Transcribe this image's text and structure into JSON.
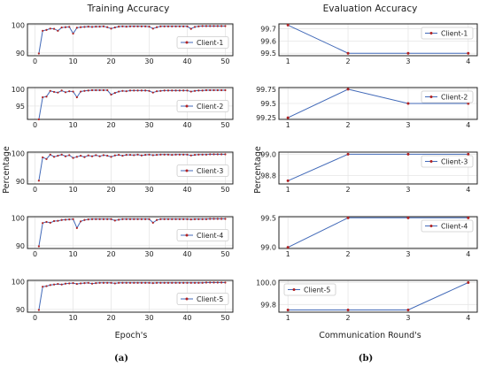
{
  "figure": {
    "left_title": "Training Accuracy",
    "right_title": "Evaluation Accuracy",
    "left_xlabel": "Epoch's",
    "right_xlabel": "Communication Round's",
    "left_ylabel": "Percentage",
    "right_ylabel": "Percentage",
    "left_caption": "(a)",
    "right_caption": "(b)"
  },
  "colors": {
    "line": "#4169b8",
    "marker": "#b22222",
    "grid": "#e6e6e6",
    "frame": "#222222"
  },
  "chart_data": [
    {
      "type": "line",
      "panel": "training-client-1",
      "xlim": [
        -2,
        52
      ],
      "ylim": [
        89,
        100.5
      ],
      "xticks": [
        0,
        10,
        20,
        30,
        40,
        50
      ],
      "yticks": [
        90,
        100
      ],
      "grid": true,
      "legend": "right",
      "series": [
        {
          "name": "Client-1",
          "x": [
            1,
            2,
            3,
            4,
            5,
            6,
            7,
            8,
            9,
            10,
            11,
            12,
            13,
            14,
            15,
            16,
            17,
            18,
            19,
            20,
            21,
            22,
            23,
            24,
            25,
            26,
            27,
            28,
            29,
            30,
            31,
            32,
            33,
            34,
            35,
            36,
            37,
            38,
            39,
            40,
            41,
            42,
            43,
            44,
            45,
            46,
            47,
            48,
            49,
            50
          ],
          "values": [
            89.8,
            98.0,
            98.3,
            98.8,
            98.7,
            98.0,
            99.2,
            99.3,
            99.4,
            97.0,
            99.1,
            99.3,
            99.4,
            99.5,
            99.4,
            99.5,
            99.5,
            99.6,
            99.3,
            98.8,
            99.2,
            99.5,
            99.6,
            99.5,
            99.6,
            99.6,
            99.6,
            99.6,
            99.6,
            99.5,
            98.8,
            99.3,
            99.6,
            99.6,
            99.6,
            99.6,
            99.6,
            99.6,
            99.6,
            99.6,
            98.7,
            99.4,
            99.6,
            99.7,
            99.7,
            99.7,
            99.7,
            99.7,
            99.7,
            99.7
          ]
        }
      ]
    },
    {
      "type": "line",
      "panel": "training-client-2",
      "xlim": [
        -2,
        52
      ],
      "ylim": [
        91,
        100.5
      ],
      "xticks": [
        0,
        10,
        20,
        30,
        40,
        50
      ],
      "yticks": [
        95,
        100
      ],
      "grid": true,
      "legend": "right",
      "series": [
        {
          "name": "Client-2",
          "x": [
            1,
            2,
            3,
            4,
            5,
            6,
            7,
            8,
            9,
            10,
            11,
            12,
            13,
            14,
            15,
            16,
            17,
            18,
            19,
            20,
            21,
            22,
            23,
            24,
            25,
            26,
            27,
            28,
            29,
            30,
            31,
            32,
            33,
            34,
            35,
            36,
            37,
            38,
            39,
            40,
            41,
            42,
            43,
            44,
            45,
            46,
            47,
            48,
            49,
            50
          ],
          "values": [
            91.0,
            97.6,
            97.8,
            99.5,
            99.2,
            99.0,
            99.6,
            99.1,
            99.4,
            99.3,
            97.6,
            99.3,
            99.5,
            99.6,
            99.7,
            99.7,
            99.7,
            99.7,
            99.7,
            98.4,
            98.9,
            99.3,
            99.5,
            99.4,
            99.6,
            99.6,
            99.6,
            99.6,
            99.6,
            99.5,
            99.0,
            99.4,
            99.5,
            99.6,
            99.6,
            99.6,
            99.6,
            99.6,
            99.6,
            99.6,
            99.3,
            99.5,
            99.6,
            99.6,
            99.7,
            99.7,
            99.7,
            99.7,
            99.7,
            99.7
          ]
        }
      ]
    },
    {
      "type": "line",
      "panel": "training-client-3",
      "xlim": [
        -2,
        52
      ],
      "ylim": [
        89,
        100.5
      ],
      "xticks": [
        0,
        10,
        20,
        30,
        40,
        50
      ],
      "yticks": [
        90,
        100
      ],
      "grid": true,
      "legend": "right",
      "series": [
        {
          "name": "Client-3",
          "x": [
            1,
            2,
            3,
            4,
            5,
            6,
            7,
            8,
            9,
            10,
            11,
            12,
            13,
            14,
            15,
            16,
            17,
            18,
            19,
            20,
            21,
            22,
            23,
            24,
            25,
            26,
            27,
            28,
            29,
            30,
            31,
            32,
            33,
            34,
            35,
            36,
            37,
            38,
            39,
            40,
            41,
            42,
            43,
            44,
            45,
            46,
            47,
            48,
            49,
            50
          ],
          "values": [
            90.2,
            98.6,
            98.0,
            99.6,
            98.8,
            99.2,
            99.6,
            99.0,
            99.4,
            98.4,
            98.8,
            99.2,
            98.7,
            99.3,
            99.0,
            99.4,
            99.0,
            99.4,
            99.2,
            98.8,
            99.3,
            99.5,
            99.2,
            99.5,
            99.5,
            99.4,
            99.6,
            99.3,
            99.5,
            99.6,
            99.4,
            99.5,
            99.6,
            99.6,
            99.6,
            99.5,
            99.6,
            99.6,
            99.6,
            99.6,
            99.3,
            99.5,
            99.6,
            99.6,
            99.6,
            99.7,
            99.7,
            99.7,
            99.7,
            99.7
          ]
        }
      ]
    },
    {
      "type": "line",
      "panel": "training-client-4",
      "xlim": [
        -2,
        52
      ],
      "ylim": [
        89,
        100.5
      ],
      "xticks": [
        0,
        10,
        20,
        30,
        40,
        50
      ],
      "yticks": [
        90,
        100
      ],
      "grid": true,
      "legend": "right",
      "series": [
        {
          "name": "Client-4",
          "x": [
            1,
            2,
            3,
            4,
            5,
            6,
            7,
            8,
            9,
            10,
            11,
            12,
            13,
            14,
            15,
            16,
            17,
            18,
            19,
            20,
            21,
            22,
            23,
            24,
            25,
            26,
            27,
            28,
            29,
            30,
            31,
            32,
            33,
            34,
            35,
            36,
            37,
            38,
            39,
            40,
            41,
            42,
            43,
            44,
            45,
            46,
            47,
            48,
            49,
            50
          ],
          "values": [
            89.8,
            98.2,
            98.6,
            98.3,
            98.9,
            99.0,
            99.3,
            99.4,
            99.5,
            99.6,
            96.4,
            98.8,
            99.3,
            99.5,
            99.6,
            99.6,
            99.6,
            99.6,
            99.6,
            99.6,
            99.1,
            99.4,
            99.6,
            99.6,
            99.6,
            99.6,
            99.6,
            99.6,
            99.6,
            99.6,
            98.3,
            99.3,
            99.6,
            99.6,
            99.6,
            99.6,
            99.6,
            99.6,
            99.6,
            99.6,
            99.5,
            99.6,
            99.6,
            99.6,
            99.6,
            99.7,
            99.7,
            99.7,
            99.7,
            99.7
          ]
        }
      ]
    },
    {
      "type": "line",
      "panel": "training-client-5",
      "xlim": [
        -2,
        52
      ],
      "ylim": [
        89,
        100.5
      ],
      "xticks": [
        0,
        10,
        20,
        30,
        40,
        50
      ],
      "yticks": [
        90,
        100
      ],
      "grid": true,
      "legend": "right",
      "series": [
        {
          "name": "Client-5",
          "x": [
            1,
            2,
            3,
            4,
            5,
            6,
            7,
            8,
            9,
            10,
            11,
            12,
            13,
            14,
            15,
            16,
            17,
            18,
            19,
            20,
            21,
            22,
            23,
            24,
            25,
            26,
            27,
            28,
            29,
            30,
            31,
            32,
            33,
            34,
            35,
            36,
            37,
            38,
            39,
            40,
            41,
            42,
            43,
            44,
            45,
            46,
            47,
            48,
            49,
            50
          ],
          "values": [
            89.8,
            98.2,
            98.4,
            98.8,
            99.0,
            99.2,
            99.0,
            99.3,
            99.4,
            99.5,
            99.2,
            99.4,
            99.5,
            99.6,
            99.3,
            99.5,
            99.6,
            99.6,
            99.6,
            99.6,
            99.4,
            99.6,
            99.6,
            99.6,
            99.6,
            99.6,
            99.6,
            99.6,
            99.6,
            99.6,
            99.5,
            99.6,
            99.6,
            99.6,
            99.6,
            99.6,
            99.6,
            99.6,
            99.6,
            99.6,
            99.6,
            99.6,
            99.6,
            99.6,
            99.7,
            99.7,
            99.7,
            99.7,
            99.7,
            99.7
          ]
        }
      ]
    },
    {
      "type": "line",
      "panel": "evaluation-client-1",
      "xlim": [
        0.85,
        4.15
      ],
      "ylim": [
        99.48,
        99.74
      ],
      "xticks": [
        1,
        2,
        3,
        4
      ],
      "yticks": [
        99.5,
        99.6,
        99.7
      ],
      "grid": true,
      "legend": "top-right",
      "series": [
        {
          "name": "Client-1",
          "x": [
            1,
            2,
            3,
            4
          ],
          "values": [
            99.73,
            99.5,
            99.5,
            99.5
          ]
        }
      ]
    },
    {
      "type": "line",
      "panel": "evaluation-client-2",
      "xlim": [
        0.85,
        4.15
      ],
      "ylim": [
        99.22,
        99.78
      ],
      "xticks": [
        1,
        2,
        3,
        4
      ],
      "yticks": [
        99.25,
        99.5,
        99.75
      ],
      "grid": true,
      "legend": "top-right",
      "series": [
        {
          "name": "Client-2",
          "x": [
            1,
            2,
            3,
            4
          ],
          "values": [
            99.25,
            99.75,
            99.5,
            99.5
          ]
        }
      ]
    },
    {
      "type": "line",
      "panel": "evaluation-client-3",
      "xlim": [
        0.85,
        4.15
      ],
      "ylim": [
        98.72,
        99.02
      ],
      "xticks": [
        1,
        2,
        3,
        4
      ],
      "yticks": [
        98.8,
        99.0
      ],
      "grid": true,
      "legend": "top-right",
      "series": [
        {
          "name": "Client-3",
          "x": [
            1,
            2,
            3,
            4
          ],
          "values": [
            98.75,
            99.0,
            99.0,
            99.0
          ]
        }
      ]
    },
    {
      "type": "line",
      "panel": "evaluation-client-4",
      "xlim": [
        0.85,
        4.15
      ],
      "ylim": [
        98.98,
        99.52
      ],
      "xticks": [
        1,
        2,
        3,
        4
      ],
      "yticks": [
        99.0,
        99.5
      ],
      "grid": true,
      "legend": "top-right",
      "series": [
        {
          "name": "Client-4",
          "x": [
            1,
            2,
            3,
            4
          ],
          "values": [
            99.0,
            99.5,
            99.5,
            99.5
          ]
        }
      ]
    },
    {
      "type": "line",
      "panel": "evaluation-client-5",
      "xlim": [
        0.85,
        4.15
      ],
      "ylim": [
        99.73,
        100.02
      ],
      "xticks": [
        1,
        2,
        3,
        4
      ],
      "yticks": [
        99.8,
        100.0
      ],
      "grid": true,
      "legend": "top-left",
      "series": [
        {
          "name": "Client-5",
          "x": [
            1,
            2,
            3,
            4
          ],
          "values": [
            99.75,
            99.75,
            99.75,
            100.0
          ]
        }
      ]
    }
  ]
}
